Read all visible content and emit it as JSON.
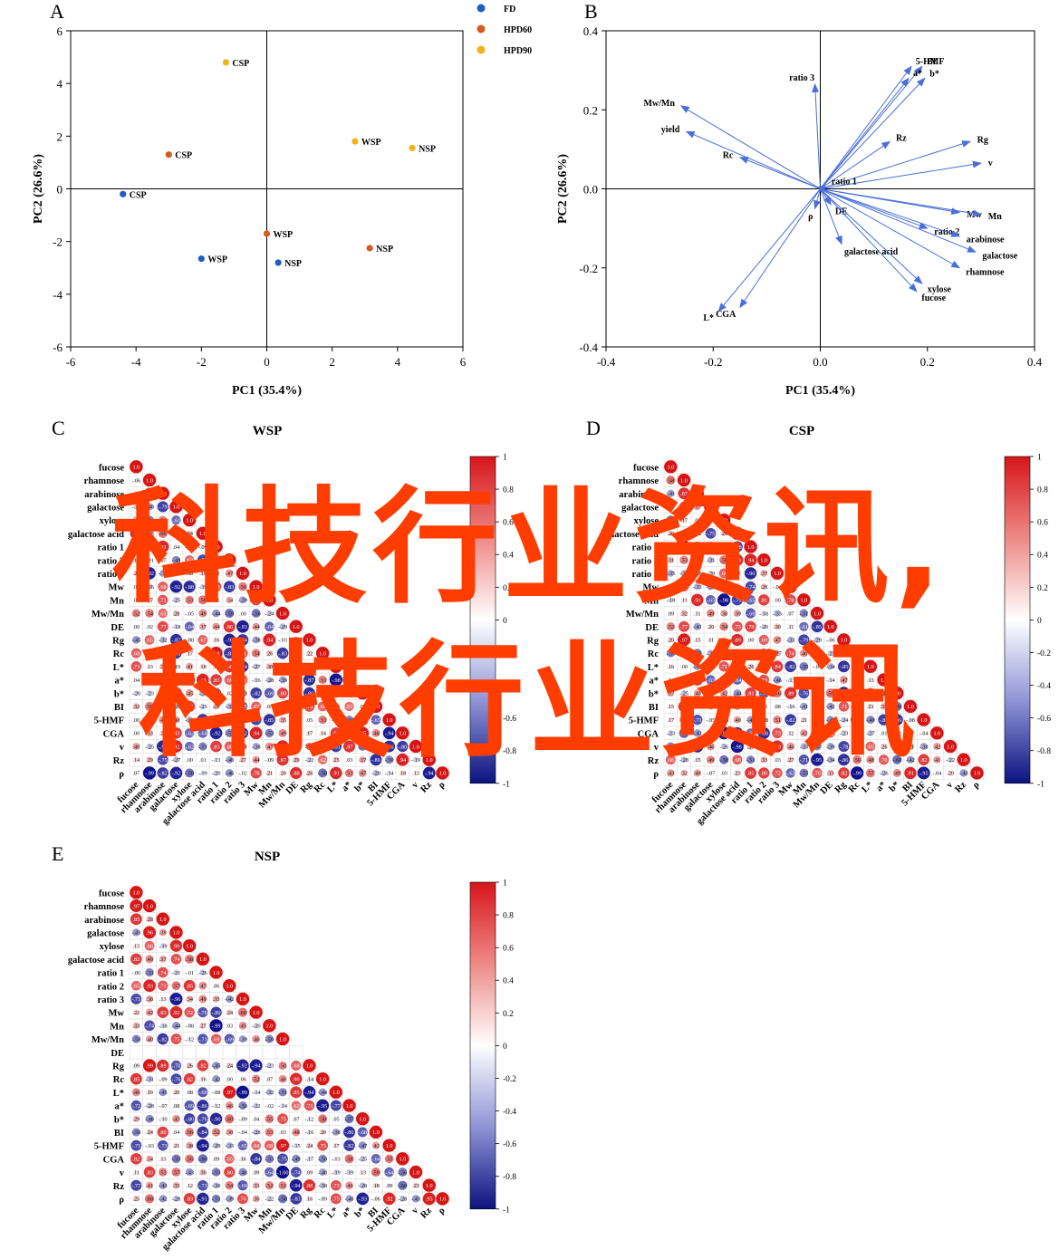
{
  "panel_a": {
    "letter": "A",
    "legend": [
      {
        "name": "FD",
        "color": "#1f5fbf"
      },
      {
        "name": "HPD60",
        "color": "#d45a1e"
      },
      {
        "name": "HPD90",
        "color": "#f2b21d"
      }
    ]
  },
  "panel_b": {
    "letter": "B"
  },
  "panel_c": {
    "letter": "C"
  },
  "panel_d": {
    "letter": "D"
  },
  "panel_e": {
    "letter": "E"
  },
  "watermark": {
    "line1": "科技行业资讯,",
    "line2": "科技行业资讯",
    "color": "#ff3d00"
  },
  "chart_data": [
    {
      "type": "scatter",
      "title": "",
      "xlabel": "PC1 (35.4%)",
      "ylabel": "PC2 (26.6%)",
      "xlim": [
        -6,
        6
      ],
      "ylim": [
        -6,
        6
      ],
      "xticks": [
        -6,
        -4,
        -2,
        0,
        2,
        4,
        6
      ],
      "yticks": [
        -6,
        -4,
        -2,
        0,
        2,
        4,
        6
      ],
      "legend_position": "top-right outside",
      "series": [
        {
          "name": "FD",
          "color": "#1f5fbf",
          "points": [
            {
              "x": -4.4,
              "y": -0.2,
              "label": "CSP"
            },
            {
              "x": -2.0,
              "y": -2.65,
              "label": "WSP"
            },
            {
              "x": 0.35,
              "y": -2.8,
              "label": "NSP"
            }
          ]
        },
        {
          "name": "HPD60",
          "color": "#d45a1e",
          "points": [
            {
              "x": -3.0,
              "y": 1.3,
              "label": "CSP"
            },
            {
              "x": 0.0,
              "y": -1.7,
              "label": "WSP"
            },
            {
              "x": 3.15,
              "y": -2.25,
              "label": "NSP"
            }
          ]
        },
        {
          "name": "HPD90",
          "color": "#f2b21d",
          "points": [
            {
              "x": -1.25,
              "y": 4.8,
              "label": "CSP"
            },
            {
              "x": 2.7,
              "y": 1.8,
              "label": "WSP"
            },
            {
              "x": 4.45,
              "y": 1.55,
              "label": "NSP"
            }
          ]
        }
      ]
    },
    {
      "type": "scatter",
      "subtype": "loading-vectors",
      "title": "",
      "xlabel": "PC1 (35.4%)",
      "ylabel": "PC2 (26.6%)",
      "xlim": [
        -0.4,
        0.4
      ],
      "ylim": [
        -0.4,
        0.4
      ],
      "xticks": [
        -0.4,
        -0.2,
        0.0,
        0.2,
        0.4
      ],
      "yticks": [
        -0.4,
        -0.2,
        0.0,
        0.2,
        0.4
      ],
      "arrow_color": "#4a6fd8",
      "vectors": [
        {
          "label": "5-HMF",
          "x": 0.17,
          "y": 0.31
        },
        {
          "label": "BI",
          "x": 0.19,
          "y": 0.31
        },
        {
          "label": "a*",
          "x": 0.165,
          "y": 0.28
        },
        {
          "label": "b*",
          "x": 0.195,
          "y": 0.28
        },
        {
          "label": "ratio 3",
          "x": -0.01,
          "y": 0.265
        },
        {
          "label": "Mw/Mn",
          "x": -0.26,
          "y": 0.21
        },
        {
          "label": "yield",
          "x": -0.25,
          "y": 0.145
        },
        {
          "label": "Rc",
          "x": -0.15,
          "y": 0.08
        },
        {
          "label": "Rz",
          "x": 0.13,
          "y": 0.12
        },
        {
          "label": "Rg",
          "x": 0.28,
          "y": 0.12
        },
        {
          "label": "v",
          "x": 0.3,
          "y": 0.065
        },
        {
          "label": "ratio 1",
          "x": 0.01,
          "y": 0.01
        },
        {
          "label": "DE",
          "x": 0.02,
          "y": -0.04
        },
        {
          "label": "ρ",
          "x": -0.01,
          "y": -0.05
        },
        {
          "label": "Mw",
          "x": 0.26,
          "y": -0.06
        },
        {
          "label": "Mn",
          "x": 0.3,
          "y": -0.065
        },
        {
          "label": "ratio 2",
          "x": 0.2,
          "y": -0.1
        },
        {
          "label": "arabinose",
          "x": 0.26,
          "y": -0.12
        },
        {
          "label": "galactose",
          "x": 0.29,
          "y": -0.16
        },
        {
          "label": "galactose acid",
          "x": 0.04,
          "y": -0.14
        },
        {
          "label": "rhamnose",
          "x": 0.26,
          "y": -0.2
        },
        {
          "label": "xylose",
          "x": 0.19,
          "y": -0.24
        },
        {
          "label": "fucose",
          "x": 0.18,
          "y": -0.26
        },
        {
          "label": "L*",
          "x": -0.19,
          "y": -0.31
        },
        {
          "label": "CGA",
          "x": -0.15,
          "y": -0.3
        }
      ]
    },
    {
      "type": "heatmap",
      "title": "WSP",
      "variables": [
        "fucose",
        "rhamnose",
        "arabinose",
        "galactose",
        "xylose",
        "galactose acid",
        "ratio 1",
        "ratio 2",
        "ratio 3",
        "Mw",
        "Mn",
        "Mw/Mn",
        "DE",
        "Rg",
        "Rc",
        "L*",
        "a*",
        "b*",
        "BI",
        "5-HMF",
        "CGA",
        "v",
        "Rz",
        "ρ"
      ],
      "colorbar": {
        "min": -1,
        "max": 1,
        "ticks": [
          1,
          0.8,
          0.6,
          0.4,
          0.2,
          0,
          -0.2,
          -0.4,
          -0.6,
          -0.8,
          -1
        ]
      },
      "lower_triangle_first_column": [
        1.0,
        -0.055,
        -0.15,
        -0.19,
        0.4,
        0.9,
        0.079,
        0.1,
        0.2,
        0.0,
        0.0,
        0.52,
        0.0,
        -0.45,
        0.68,
        0.73,
        0.038,
        -0.2,
        0.32,
        0.0034,
        0.0,
        0.4,
        0.14,
        0.07
      ]
    },
    {
      "type": "heatmap",
      "title": "CSP",
      "variables": [
        "fucose",
        "rhamnose",
        "arabinose",
        "galactose",
        "xylose",
        "galactose acid",
        "ratio 1",
        "ratio 2",
        "ratio 3",
        "Mw",
        "Mn",
        "Mw/Mn",
        "DE",
        "Rg",
        "Rc",
        "L*",
        "a*",
        "b*",
        "BI",
        "5-HMF",
        "CGA",
        "v",
        "Rz",
        "ρ"
      ],
      "colorbar": {
        "min": -1,
        "max": 1,
        "ticks": [
          1,
          0.8,
          0.6,
          0.4,
          0.2,
          0,
          -0.2,
          -0.4,
          -0.6,
          -0.8,
          -1
        ]
      },
      "lower_triangle_first_column": [
        1.0,
        0.58,
        -0.41,
        0.19,
        -0.59,
        0.2,
        0.18,
        0.31,
        -0.35,
        0.17,
        -0.18,
        0.09,
        0.52,
        0.2,
        -0.5,
        0.16,
        0.14,
        0.37,
        0.15,
        0.17,
        -0.23,
        -0.5,
        0.66,
        0.43
      ]
    },
    {
      "type": "heatmap",
      "title": "NSP",
      "variables": [
        "fucose",
        "rhamnose",
        "arabinose",
        "galactose",
        "xylose",
        "galactose acid",
        "ratio 1",
        "ratio 2",
        "ratio 3",
        "Mw",
        "Mn",
        "Mw/Mn",
        "DE",
        "Rg",
        "Rc",
        "L*",
        "a*",
        "b*",
        "BI",
        "5-HMF",
        "CGA",
        "v",
        "Rz",
        "ρ"
      ],
      "colorbar": {
        "min": -1,
        "max": 1,
        "ticks": [
          1,
          0.8,
          0.6,
          0.4,
          0.2,
          0,
          -0.2,
          -0.4,
          -0.6,
          -0.8,
          -1
        ]
      },
      "lower_triangle_first_column": [
        1.0,
        0.97,
        0.85,
        -0.43,
        0.13,
        0.82,
        -0.058,
        0.65,
        -0.75,
        0.22,
        0.33,
        -0.5,
        null,
        0.093,
        0.85,
        0.49,
        -0.72,
        0.29,
        -0.5,
        -0.75,
        0.82,
        0.11,
        -0.77,
        0.25
      ],
      "DE_row_blank": true
    }
  ]
}
